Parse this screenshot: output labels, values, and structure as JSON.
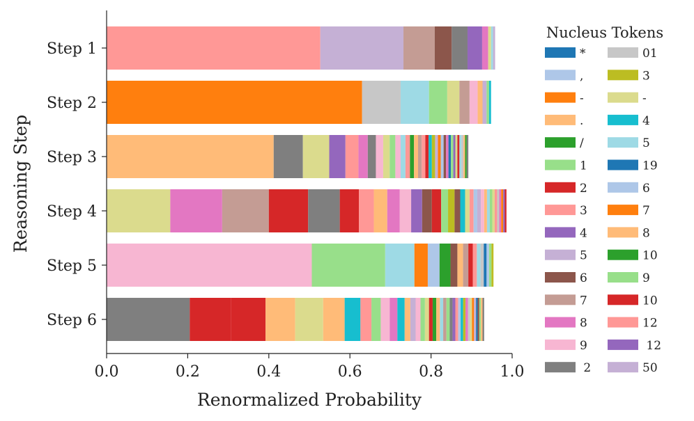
{
  "chart_data": {
    "type": "bar",
    "orientation": "horizontal",
    "stacked": true,
    "xlabel": "Renormalized Probability",
    "ylabel": "Reasoning Step",
    "xlim": [
      0.0,
      1.0
    ],
    "xticks": [
      "0.0",
      "0.2",
      "0.4",
      "0.6",
      "0.8",
      "1.0"
    ],
    "categories": [
      "Step 1",
      "Step 2",
      "Step 3",
      "Step 4",
      "Step 5",
      "Step 6"
    ],
    "legend": {
      "title": "Nucleus Tokens",
      "location": "right",
      "entries": [
        {
          "label": "*",
          "color": "#1f77b4"
        },
        {
          "label": ",",
          "color": "#aec7e8"
        },
        {
          "label": "-",
          "color": "#ff7f0e"
        },
        {
          "label": ".",
          "color": "#ffbb78"
        },
        {
          "label": "/",
          "color": "#2ca02c"
        },
        {
          "label": "1",
          "color": "#98df8a"
        },
        {
          "label": "2",
          "color": "#d62728"
        },
        {
          "label": "3",
          "color": "#ff9896"
        },
        {
          "label": "4",
          "color": "#9467bd"
        },
        {
          "label": "5",
          "color": "#c5b0d5"
        },
        {
          "label": "6",
          "color": "#8c564b"
        },
        {
          "label": "7",
          "color": "#c49c94"
        },
        {
          "label": "8",
          "color": "#e377c2"
        },
        {
          "label": "9",
          "color": "#f7b6d2"
        },
        {
          "label": " 2",
          "color": "#7f7f7f"
        },
        {
          "label": "01",
          "color": "#c7c7c7"
        },
        {
          "label": "3",
          "color": "#bcbd22"
        },
        {
          "label": "-",
          "color": "#dbdb8d"
        },
        {
          "label": "4",
          "color": "#17becf"
        },
        {
          "label": "5",
          "color": "#9edae5"
        },
        {
          "label": "19",
          "color": "#1f77b4"
        },
        {
          "label": "6",
          "color": "#aec7e8"
        },
        {
          "label": "7",
          "color": "#ff7f0e"
        },
        {
          "label": "8",
          "color": "#ffbb78"
        },
        {
          "label": "10",
          "color": "#2ca02c"
        },
        {
          "label": "9",
          "color": "#98df8a"
        },
        {
          "label": "10",
          "color": "#d62728"
        },
        {
          "label": "12",
          "color": "#ff9896"
        },
        {
          "label": " 12",
          "color": "#9467bd"
        },
        {
          "label": "50",
          "color": "#c5b0d5"
        }
      ]
    },
    "series": [
      {
        "category": "Step 1",
        "segments": [
          {
            "value": 0.527,
            "color": "#ff9896"
          },
          {
            "value": 0.205,
            "color": "#c5b0d5"
          },
          {
            "value": 0.077,
            "color": "#c49c94"
          },
          {
            "value": 0.042,
            "color": "#8c564b"
          },
          {
            "value": 0.039,
            "color": "#7f7f7f"
          },
          {
            "value": 0.036,
            "color": "#9467bd"
          },
          {
            "value": 0.015,
            "color": "#e377c2"
          },
          {
            "value": 0.007,
            "color": "#dbdb8d"
          },
          {
            "value": 0.005,
            "color": "#9edae5"
          },
          {
            "value": 0.005,
            "color": "#c5b0d5"
          }
        ]
      },
      {
        "category": "Step 2",
        "segments": [
          {
            "value": 0.63,
            "color": "#ff7f0e"
          },
          {
            "value": 0.095,
            "color": "#c7c7c7"
          },
          {
            "value": 0.07,
            "color": "#9edae5"
          },
          {
            "value": 0.045,
            "color": "#98df8a"
          },
          {
            "value": 0.03,
            "color": "#dbdb8d"
          },
          {
            "value": 0.025,
            "color": "#c49c94"
          },
          {
            "value": 0.02,
            "color": "#f7b6d2"
          },
          {
            "value": 0.012,
            "color": "#ffbb78"
          },
          {
            "value": 0.01,
            "color": "#c5b0d5"
          },
          {
            "value": 0.006,
            "color": "#98df8a"
          },
          {
            "value": 0.005,
            "color": "#17becf"
          }
        ]
      },
      {
        "category": "Step 3",
        "segments": [
          {
            "value": 0.412,
            "color": "#ffbb78"
          },
          {
            "value": 0.072,
            "color": "#7f7f7f"
          },
          {
            "value": 0.065,
            "color": "#dbdb8d"
          },
          {
            "value": 0.04,
            "color": "#9467bd"
          },
          {
            "value": 0.032,
            "color": "#ff9896"
          },
          {
            "value": 0.023,
            "color": "#e377c2"
          },
          {
            "value": 0.02,
            "color": "#7f7f7f"
          },
          {
            "value": 0.018,
            "color": "#f7b6d2"
          },
          {
            "value": 0.016,
            "color": "#dbdb8d"
          },
          {
            "value": 0.014,
            "color": "#98df8a"
          },
          {
            "value": 0.013,
            "color": "#f7b6d2"
          },
          {
            "value": 0.012,
            "color": "#9edae5"
          },
          {
            "value": 0.011,
            "color": "#ff9896"
          },
          {
            "value": 0.01,
            "color": "#2ca02c"
          },
          {
            "value": 0.01,
            "color": "#ffbb78"
          },
          {
            "value": 0.009,
            "color": "#c49c94"
          },
          {
            "value": 0.009,
            "color": "#ff9896"
          },
          {
            "value": 0.008,
            "color": "#d62728"
          },
          {
            "value": 0.008,
            "color": "#17becf"
          },
          {
            "value": 0.008,
            "color": "#bcbd22"
          },
          {
            "value": 0.007,
            "color": "#c5b0d5"
          },
          {
            "value": 0.007,
            "color": "#ff7f0e"
          },
          {
            "value": 0.007,
            "color": "#aec7e8"
          },
          {
            "value": 0.006,
            "color": "#8c564b"
          },
          {
            "value": 0.006,
            "color": "#e377c2"
          },
          {
            "value": 0.006,
            "color": "#1f77b4"
          },
          {
            "value": 0.006,
            "color": "#98df8a"
          },
          {
            "value": 0.005,
            "color": "#9467bd"
          },
          {
            "value": 0.005,
            "color": "#dbdb8d"
          },
          {
            "value": 0.005,
            "color": "#d62728"
          },
          {
            "value": 0.005,
            "color": "#9edae5"
          },
          {
            "value": 0.005,
            "color": "#c7c7c7"
          },
          {
            "value": 0.004,
            "color": "#ffbb78"
          },
          {
            "value": 0.004,
            "color": "#2ca02c"
          },
          {
            "value": 0.004,
            "color": "#7f7f7f"
          }
        ]
      },
      {
        "category": "Step 4",
        "segments": [
          {
            "value": 0.157,
            "color": "#dbdb8d"
          },
          {
            "value": 0.128,
            "color": "#e377c2"
          },
          {
            "value": 0.115,
            "color": "#c49c94"
          },
          {
            "value": 0.097,
            "color": "#d62728"
          },
          {
            "value": 0.078,
            "color": "#7f7f7f"
          },
          {
            "value": 0.047,
            "color": "#d62728"
          },
          {
            "value": 0.037,
            "color": "#ff9896"
          },
          {
            "value": 0.033,
            "color": "#ffbb78"
          },
          {
            "value": 0.031,
            "color": "#e377c2"
          },
          {
            "value": 0.028,
            "color": "#f7b6d2"
          },
          {
            "value": 0.027,
            "color": "#9467bd"
          },
          {
            "value": 0.024,
            "color": "#8c564b"
          },
          {
            "value": 0.023,
            "color": "#d62728"
          },
          {
            "value": 0.017,
            "color": "#98df8a"
          },
          {
            "value": 0.016,
            "color": "#bcbd22"
          },
          {
            "value": 0.014,
            "color": "#8c564b"
          },
          {
            "value": 0.012,
            "color": "#17becf"
          },
          {
            "value": 0.011,
            "color": "#dbdb8d"
          },
          {
            "value": 0.01,
            "color": "#ff9896"
          },
          {
            "value": 0.009,
            "color": "#aec7e8"
          },
          {
            "value": 0.009,
            "color": "#c5b0d5"
          },
          {
            "value": 0.008,
            "color": "#f7b6d2"
          },
          {
            "value": 0.007,
            "color": "#ffbb78"
          },
          {
            "value": 0.007,
            "color": "#9edae5"
          },
          {
            "value": 0.006,
            "color": "#98df8a"
          },
          {
            "value": 0.006,
            "color": "#dbdb8d"
          },
          {
            "value": 0.006,
            "color": "#ff9896"
          },
          {
            "value": 0.005,
            "color": "#c7c7c7"
          },
          {
            "value": 0.005,
            "color": "#e377c2"
          },
          {
            "value": 0.005,
            "color": "#ff7f0e"
          },
          {
            "value": 0.004,
            "color": "#9467bd"
          },
          {
            "value": 0.004,
            "color": "#d62728"
          }
        ]
      },
      {
        "category": "Step 5",
        "segments": [
          {
            "value": 0.506,
            "color": "#f7b6d2"
          },
          {
            "value": 0.181,
            "color": "#98df8a"
          },
          {
            "value": 0.072,
            "color": "#9edae5"
          },
          {
            "value": 0.033,
            "color": "#ff7f0e"
          },
          {
            "value": 0.029,
            "color": "#aec7e8"
          },
          {
            "value": 0.027,
            "color": "#2ca02c"
          },
          {
            "value": 0.017,
            "color": "#8c564b"
          },
          {
            "value": 0.014,
            "color": "#ffbb78"
          },
          {
            "value": 0.013,
            "color": "#c49c94"
          },
          {
            "value": 0.011,
            "color": "#d62728"
          },
          {
            "value": 0.01,
            "color": "#ff9896"
          },
          {
            "value": 0.009,
            "color": "#9edae5"
          },
          {
            "value": 0.008,
            "color": "#c7c7c7"
          },
          {
            "value": 0.007,
            "color": "#1f77b4"
          },
          {
            "value": 0.006,
            "color": "#aec7e8"
          },
          {
            "value": 0.006,
            "color": "#98df8a"
          },
          {
            "value": 0.005,
            "color": "#bcbd22"
          }
        ]
      },
      {
        "category": "Step 6",
        "segments": [
          {
            "value": 0.205,
            "color": "#7f7f7f"
          },
          {
            "value": 0.102,
            "color": "#d62728"
          },
          {
            "value": 0.085,
            "color": "#d62728"
          },
          {
            "value": 0.073,
            "color": "#ffbb78"
          },
          {
            "value": 0.069,
            "color": "#dbdb8d"
          },
          {
            "value": 0.053,
            "color": "#ffbb78"
          },
          {
            "value": 0.039,
            "color": "#17becf"
          },
          {
            "value": 0.027,
            "color": "#ff9896"
          },
          {
            "value": 0.023,
            "color": "#98df8a"
          },
          {
            "value": 0.022,
            "color": "#f7b6d2"
          },
          {
            "value": 0.019,
            "color": "#e377c2"
          },
          {
            "value": 0.018,
            "color": "#17becf"
          },
          {
            "value": 0.014,
            "color": "#ffbb78"
          },
          {
            "value": 0.013,
            "color": "#c5b0d5"
          },
          {
            "value": 0.012,
            "color": "#f7b6d2"
          },
          {
            "value": 0.011,
            "color": "#98df8a"
          },
          {
            "value": 0.01,
            "color": "#dbdb8d"
          },
          {
            "value": 0.009,
            "color": "#d62728"
          },
          {
            "value": 0.009,
            "color": "#2ca02c"
          },
          {
            "value": 0.009,
            "color": "#ffbb78"
          },
          {
            "value": 0.008,
            "color": "#9edae5"
          },
          {
            "value": 0.008,
            "color": "#c49c94"
          },
          {
            "value": 0.008,
            "color": "#98df8a"
          },
          {
            "value": 0.007,
            "color": "#7f7f7f"
          },
          {
            "value": 0.007,
            "color": "#9467bd"
          },
          {
            "value": 0.007,
            "color": "#ff9896"
          },
          {
            "value": 0.006,
            "color": "#aec7e8"
          },
          {
            "value": 0.006,
            "color": "#17becf"
          },
          {
            "value": 0.006,
            "color": "#bcbd22"
          },
          {
            "value": 0.006,
            "color": "#e377c2"
          },
          {
            "value": 0.005,
            "color": "#c7c7c7"
          },
          {
            "value": 0.005,
            "color": "#dbdb8d"
          },
          {
            "value": 0.005,
            "color": "#ff7f0e"
          },
          {
            "value": 0.005,
            "color": "#c5b0d5"
          },
          {
            "value": 0.004,
            "color": "#1f77b4"
          },
          {
            "value": 0.004,
            "color": "#8c564b"
          },
          {
            "value": 0.004,
            "color": "#98df8a"
          },
          {
            "value": 0.004,
            "color": "#ffbb78"
          },
          {
            "value": 0.004,
            "color": "#7f7f7f"
          }
        ]
      }
    ]
  }
}
